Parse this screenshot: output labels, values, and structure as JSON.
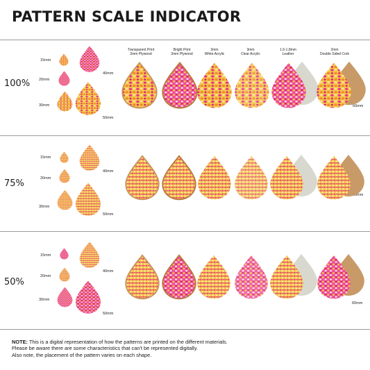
{
  "title": "PATTERN SCALE INDICATOR",
  "materials": [
    {
      "line1": "Transparent Print",
      "line2": "3mm Plywood"
    },
    {
      "line1": "Bright Print",
      "line2": "3mm Plywood"
    },
    {
      "line1": "3mm",
      "line2": "White Acrylic"
    },
    {
      "line1": "3mm",
      "line2": "Clear Acrylic"
    },
    {
      "line1": "1.6-1.8mm",
      "line2": "Leather"
    },
    {
      "line1": "2mm",
      "line2": "Double Sided Cork"
    }
  ],
  "sizes": {
    "s15": "15mm",
    "s20": "20mm",
    "s30": "30mm",
    "s40": "40mm",
    "s50": "50mm",
    "s60": "60mm"
  },
  "scales": [
    {
      "label": "100%"
    },
    {
      "label": "75%"
    },
    {
      "label": "50%"
    }
  ],
  "note": {
    "prefix": "NOTE:",
    "line1": " This is a digital representation of how the patterns are printed on the different materials.",
    "line2": "Please be aware there are some characteristics that can't be represented digitally.",
    "line3": "Also note, the placement of the pattern varies on each shape."
  },
  "colors": {
    "pink": "#e8338a",
    "magenta": "#d81b6f",
    "yellow": "#f2c23a",
    "orange": "#f08a2a",
    "cream": "#f6e7a8",
    "wood": "#c9955a",
    "leather": "#d8d8cf",
    "cork": "#c89a68"
  }
}
